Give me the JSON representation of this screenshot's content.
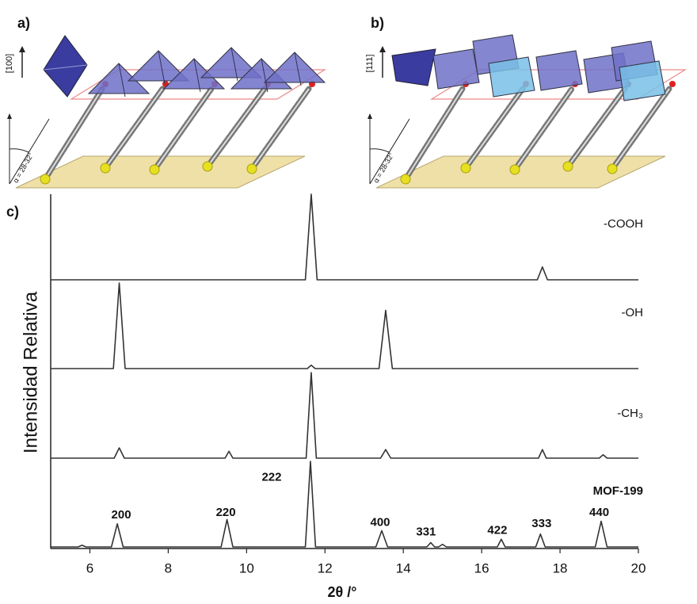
{
  "figure": {
    "panel_labels": [
      "a)",
      "b)",
      "c)"
    ],
    "diagram_a": {
      "axis_label": "[100]",
      "angle_label": "α = 28-32°"
    },
    "diagram_b": {
      "axis_label": "[111]",
      "angle_label": "α = 28-32°"
    }
  },
  "chart_data": {
    "type": "line",
    "xlabel": "2θ /°",
    "ylabel": "Intensidad Relativa",
    "xlim": [
      5,
      20
    ],
    "xticks": [
      6,
      8,
      10,
      12,
      14,
      16,
      18,
      20
    ],
    "ylim": [
      0,
      100
    ],
    "series": [
      {
        "name": "-COOH",
        "color": "#333333",
        "x": [
          5,
          11.5,
          11.65,
          11.8,
          17.42,
          17.55,
          17.68,
          20
        ],
        "values": [
          0,
          0,
          100,
          0,
          0,
          15,
          0,
          0
        ]
      },
      {
        "name": "-OH",
        "color": "#333333",
        "x": [
          5,
          6.6,
          6.75,
          6.9,
          11.55,
          11.65,
          11.75,
          13.38,
          13.55,
          13.72,
          20
        ],
        "values": [
          0,
          0,
          100,
          0,
          0,
          4,
          0,
          0,
          68,
          0,
          0
        ]
      },
      {
        "name": "-CH₃",
        "color": "#333333",
        "x": [
          5,
          6.62,
          6.75,
          6.88,
          9.45,
          9.55,
          9.65,
          11.52,
          11.65,
          11.78,
          13.42,
          13.55,
          13.68,
          17.45,
          17.55,
          17.65,
          19.0,
          19.1,
          19.2,
          20
        ],
        "values": [
          0,
          0,
          12,
          0,
          0,
          8,
          0,
          0,
          100,
          0,
          0,
          10,
          0,
          0,
          10,
          0,
          0,
          4,
          0,
          0
        ]
      },
      {
        "name": "MOF-199",
        "color": "#333333",
        "x": [
          5,
          5.7,
          5.8,
          5.9,
          6.55,
          6.7,
          6.85,
          9.35,
          9.5,
          9.65,
          11.5,
          11.63,
          11.76,
          13.3,
          13.45,
          13.6,
          14.6,
          14.7,
          14.8,
          14.9,
          15.0,
          15.1,
          16.4,
          16.5,
          16.6,
          17.38,
          17.5,
          17.62,
          18.9,
          19.05,
          19.2,
          20
        ],
        "values": [
          0,
          0,
          2,
          0,
          0,
          27,
          0,
          0,
          32,
          0,
          0,
          100,
          0,
          0,
          19,
          0,
          0,
          5,
          0,
          0,
          3,
          0,
          0,
          9,
          0,
          0,
          15,
          0,
          0,
          30,
          0,
          0
        ]
      }
    ],
    "annotations": [
      {
        "text": "200",
        "x": 6.8,
        "y": 37
      },
      {
        "text": "220",
        "x": 9.47,
        "y": 40
      },
      {
        "text": "222",
        "x": 10.64,
        "y": 81
      },
      {
        "text": "400",
        "x": 13.41,
        "y": 28
      },
      {
        "text": "331",
        "x": 14.58,
        "y": 17
      },
      {
        "text": "422",
        "x": 16.4,
        "y": 19
      },
      {
        "text": "333",
        "x": 17.53,
        "y": 27
      },
      {
        "text": "440",
        "x": 19.0,
        "y": 40
      }
    ]
  }
}
